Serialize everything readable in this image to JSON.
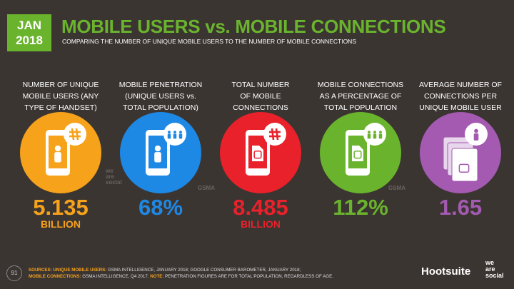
{
  "header": {
    "month": "JAN",
    "year": "2018",
    "title": "MOBILE USERS vs. MOBILE CONNECTIONS",
    "subtitle": "COMPARING THE NUMBER OF UNIQUE MOBILE USERS TO THE NUMBER OF MOBILE CONNECTIONS"
  },
  "stats": [
    {
      "label_lines": [
        "NUMBER OF UNIQUE",
        "MOBILE USERS (ANY",
        "TYPE OF HANDSET)"
      ],
      "value": "5.135",
      "unit": "BILLION"
    },
    {
      "label_lines": [
        "MOBILE PENETRATION",
        "(UNIQUE USERS vs.",
        "TOTAL POPULATION)"
      ],
      "value": "68%"
    },
    {
      "label_lines": [
        "TOTAL NUMBER",
        "OF MOBILE",
        "CONNECTIONS"
      ],
      "value": "8.485",
      "unit": "BILLION"
    },
    {
      "label_lines": [
        "MOBILE CONNECTIONS",
        "AS A PERCENTAGE OF",
        "TOTAL POPULATION"
      ],
      "value": "112%"
    },
    {
      "label_lines": [
        "AVERAGE NUMBER OF",
        "CONNECTIONS PER",
        "UNIQUE MOBILE USER"
      ],
      "value": "1.65"
    }
  ],
  "source_marks": {
    "wearesocial": [
      "we",
      "are",
      "social"
    ],
    "gsma": "GSMA"
  },
  "footer": {
    "page": "91",
    "lines": [
      [
        {
          "text": "SOURCES:",
          "em": true
        },
        {
          "text": " "
        },
        {
          "text": "UNIQUE MOBILE USERS:",
          "em": true
        },
        {
          "text": " GSMA INTELLIGENCE, JANUARY 2018; GOOGLE CONSUMER BAROMETER, JANUARY 2018;"
        }
      ],
      [
        {
          "text": "MOBILE CONNECTIONS:",
          "em": true
        },
        {
          "text": " GSMA INTELLIGENCE, Q4 2017. "
        },
        {
          "text": "NOTE:",
          "em": true
        },
        {
          "text": " PENETRATION FIGURES ARE FOR TOTAL POPULATION, REGARDLESS OF AGE."
        }
      ]
    ],
    "brand": "Hootsuite",
    "brand2": [
      "we",
      "are",
      "social"
    ]
  }
}
